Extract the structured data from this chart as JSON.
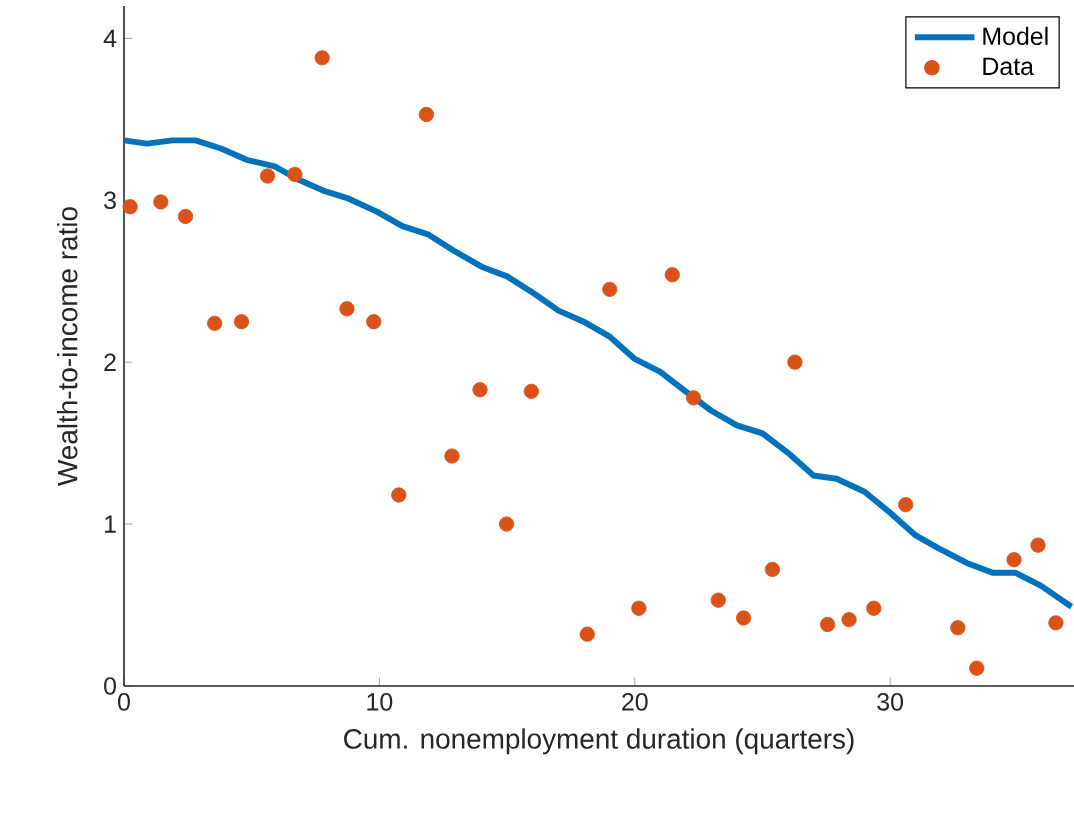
{
  "chart_data": {
    "type": "line",
    "xlabel": "Cum. nonemployment duration (quarters)",
    "ylabel": "Wealth-to-income ratio",
    "xlim": [
      0,
      37.2
    ],
    "ylim": [
      0,
      4.2
    ],
    "xticks": [
      0,
      10,
      20,
      30
    ],
    "yticks": [
      0,
      1,
      2,
      3,
      4
    ],
    "legend": "top right",
    "series": [
      {
        "name": "Model",
        "type": "line",
        "color": "#0072bd",
        "marker": "none",
        "line_style": "solid",
        "x": [
          0,
          0.9,
          1.9,
          2.8,
          3.8,
          4.8,
          5.9,
          6.8,
          7.8,
          8.8,
          9.9,
          10.9,
          11.9,
          12.9,
          14,
          15,
          16.1,
          17,
          18,
          19,
          20,
          21,
          21.9,
          23,
          24,
          25,
          26,
          27,
          27.9,
          29,
          30,
          31,
          31.9,
          33,
          34,
          34.9,
          35.9,
          37.1
        ],
        "values": [
          3.37,
          3.35,
          3.37,
          3.37,
          3.32,
          3.25,
          3.21,
          3.13,
          3.06,
          3.01,
          2.93,
          2.84,
          2.79,
          2.69,
          2.59,
          2.53,
          2.42,
          2.32,
          2.25,
          2.16,
          2.02,
          1.94,
          1.83,
          1.7,
          1.61,
          1.56,
          1.44,
          1.3,
          1.28,
          1.2,
          1.07,
          0.93,
          0.85,
          0.76,
          0.7,
          0.7,
          0.62,
          0.49
        ]
      },
      {
        "name": "Data",
        "type": "scatter",
        "color": "#d95319",
        "marker": "circle",
        "x": [
          0.24,
          1.44,
          2.41,
          3.55,
          4.6,
          5.62,
          6.69,
          7.76,
          8.73,
          9.78,
          10.76,
          11.84,
          12.84,
          13.94,
          14.98,
          15.95,
          18.14,
          19.02,
          20.16,
          21.47,
          22.3,
          23.27,
          24.26,
          25.39,
          26.27,
          27.55,
          28.39,
          29.36,
          30.61,
          32.65,
          33.39,
          34.85,
          35.79,
          36.49
        ],
        "values": [
          2.96,
          2.99,
          2.9,
          2.24,
          2.25,
          3.15,
          3.16,
          3.88,
          2.33,
          2.25,
          1.18,
          3.53,
          1.42,
          1.83,
          1.0,
          1.82,
          0.32,
          2.45,
          0.48,
          2.54,
          1.78,
          0.53,
          0.42,
          0.72,
          2.0,
          0.38,
          0.41,
          0.48,
          1.12,
          0.36,
          0.11,
          0.78,
          0.87,
          0.39
        ]
      }
    ]
  }
}
